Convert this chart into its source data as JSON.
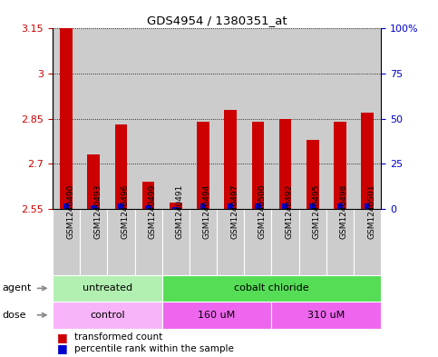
{
  "title": "GDS4954 / 1380351_at",
  "samples": [
    "GSM1240490",
    "GSM1240493",
    "GSM1240496",
    "GSM1240499",
    "GSM1240491",
    "GSM1240494",
    "GSM1240497",
    "GSM1240500",
    "GSM1240492",
    "GSM1240495",
    "GSM1240498",
    "GSM1240501"
  ],
  "red_values": [
    3.21,
    2.73,
    2.83,
    2.64,
    2.57,
    2.84,
    2.88,
    2.84,
    2.85,
    2.78,
    2.84,
    2.87
  ],
  "blue_percentile": [
    3,
    2,
    3,
    2,
    1,
    3,
    3,
    3,
    3,
    3,
    3,
    3
  ],
  "y_min": 2.55,
  "y_max": 3.15,
  "y_ticks": [
    2.55,
    2.7,
    2.85,
    3.0,
    3.15
  ],
  "y_tick_labels": [
    "2.55",
    "2.7",
    "2.85",
    "3",
    "3.15"
  ],
  "right_y_ticks_pct": [
    0,
    25,
    50,
    75,
    100
  ],
  "right_y_labels": [
    "0",
    "25",
    "50",
    "75",
    "100%"
  ],
  "agent_groups": [
    {
      "label": "untreated",
      "start": 0,
      "end": 3,
      "color": "#b2f0b2"
    },
    {
      "label": "cobalt chloride",
      "start": 4,
      "end": 11,
      "color": "#55dd55"
    }
  ],
  "dose_groups": [
    {
      "label": "control",
      "start": 0,
      "end": 3,
      "color": "#f8b4f8"
    },
    {
      "label": "160 uM",
      "start": 4,
      "end": 7,
      "color": "#ee66ee"
    },
    {
      "label": "310 uM",
      "start": 8,
      "end": 11,
      "color": "#ee66ee"
    }
  ],
  "bar_color_red": "#cc0000",
  "bar_color_blue": "#0000cc",
  "sample_bg_color": "#cccccc",
  "tick_color_left": "#cc0000",
  "tick_color_right": "#0000cc",
  "grid_color": "#000000",
  "bar_width": 0.45,
  "blue_bar_width": 0.22
}
